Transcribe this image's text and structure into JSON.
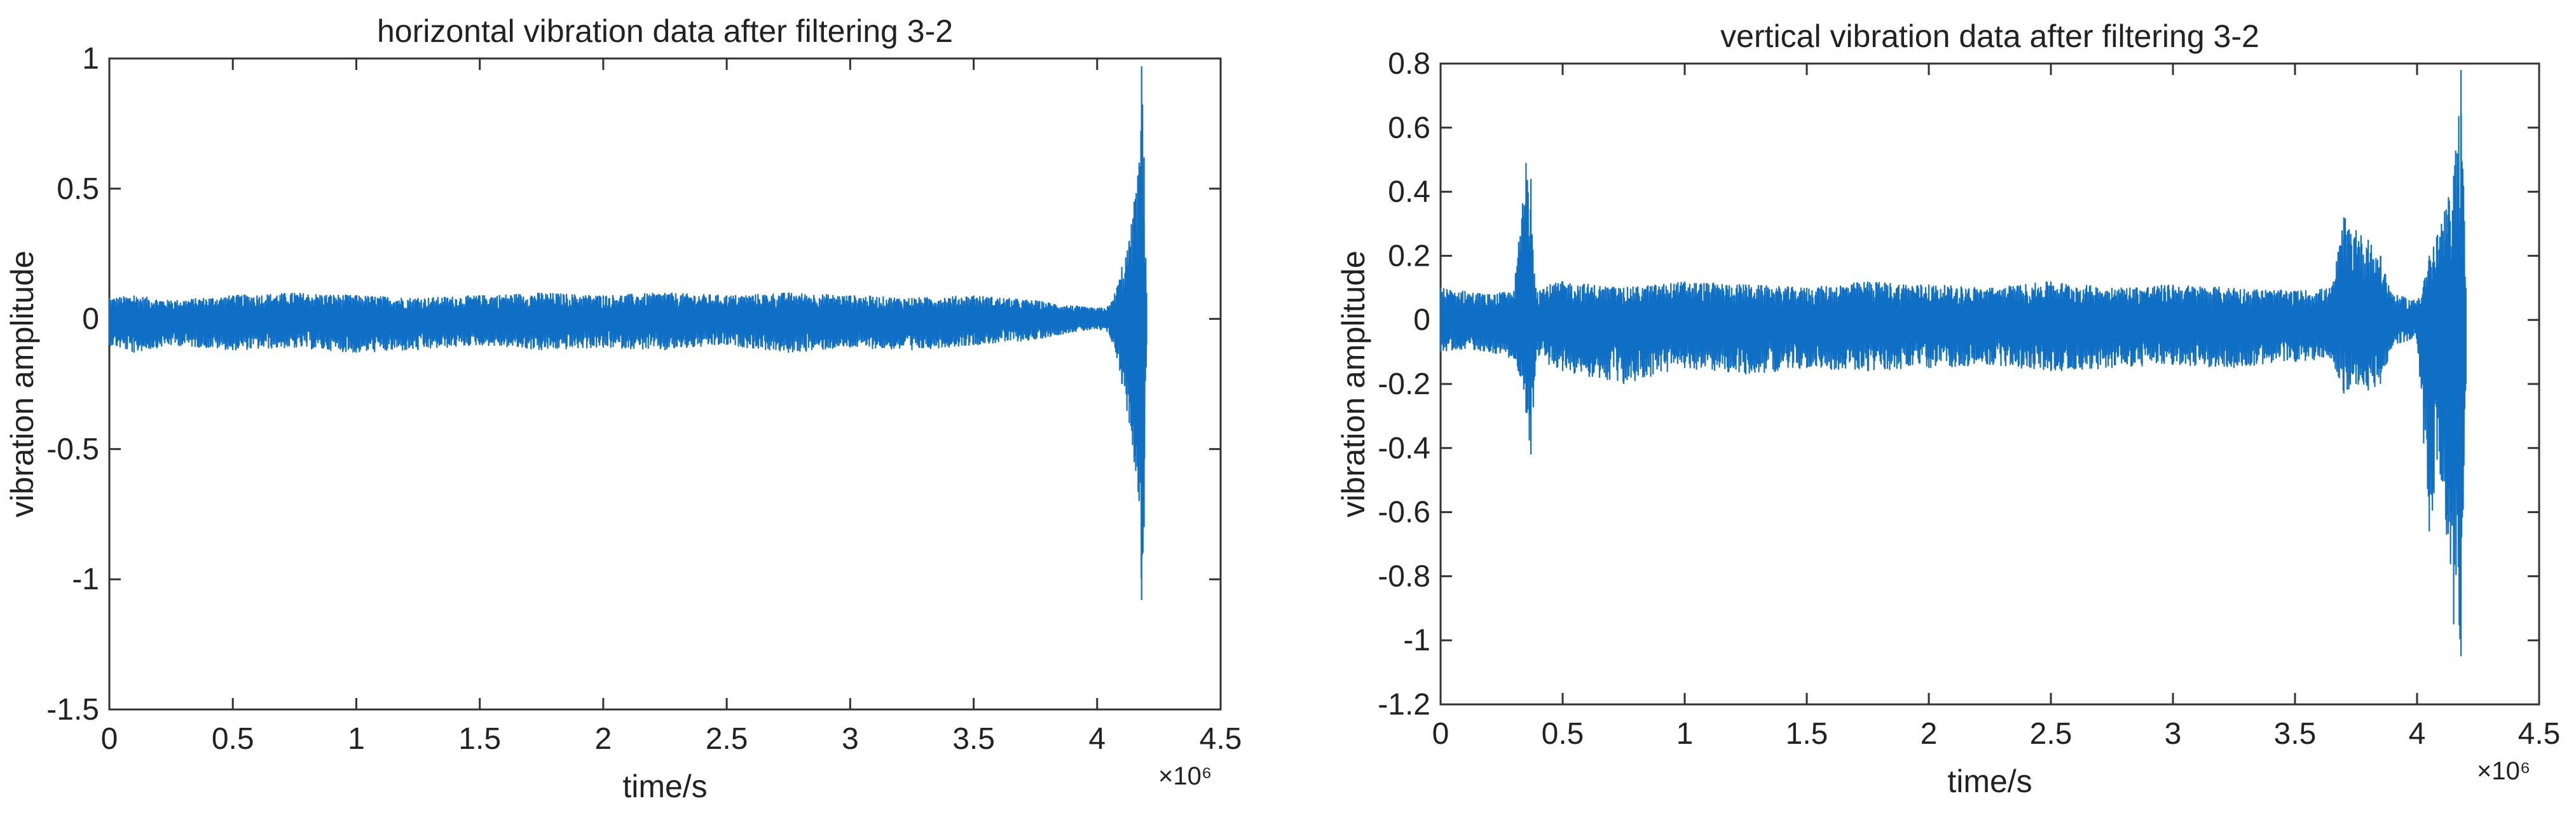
{
  "chart_data": [
    {
      "type": "line",
      "title": "horizontal vibration data after filtering 3-2",
      "xlabel": "time/s",
      "ylabel": "vibration amplitude",
      "x_multiplier_label": "×10⁶",
      "xlim": [
        0,
        4.5
      ],
      "ylim": [
        -1.5,
        1
      ],
      "xticks": [
        0,
        0.5,
        1,
        1.5,
        2,
        2.5,
        3,
        3.5,
        4,
        4.5
      ],
      "xtick_labels": [
        "0",
        "0.5",
        "1",
        "1.5",
        "2",
        "2.5",
        "3",
        "3.5",
        "4",
        "4.5"
      ],
      "yticks": [
        1,
        0.5,
        0,
        -0.5,
        -1,
        -1.5
      ],
      "ytick_labels": [
        "1",
        "0.5",
        "0",
        "-0.5",
        "-1",
        "-1.5"
      ],
      "grid": false,
      "line_color": "#0f6fc4",
      "series": [
        {
          "x": [
            0,
            0.1,
            0.25,
            0.5,
            0.75,
            1,
            1.25,
            1.5,
            1.75,
            2,
            2.25,
            2.5,
            2.75,
            3,
            3.25,
            3.5,
            3.75,
            3.9,
            4.0,
            4.05,
            4.08,
            4.1,
            4.13,
            4.15,
            4.17,
            4.18,
            4.19,
            4.2
          ],
          "upper": [
            0.08,
            0.09,
            0.07,
            0.09,
            0.1,
            0.09,
            0.08,
            0.09,
            0.1,
            0.09,
            0.1,
            0.09,
            0.1,
            0.09,
            0.08,
            0.09,
            0.07,
            0.05,
            0.04,
            0.05,
            0.12,
            0.2,
            0.3,
            0.45,
            0.6,
            0.97,
            0.62,
            0.1
          ],
          "lower": [
            -0.1,
            -0.13,
            -0.1,
            -0.12,
            -0.11,
            -0.13,
            -0.12,
            -0.1,
            -0.12,
            -0.11,
            -0.12,
            -0.1,
            -0.13,
            -0.11,
            -0.12,
            -0.1,
            -0.08,
            -0.05,
            -0.04,
            -0.06,
            -0.15,
            -0.25,
            -0.4,
            -0.55,
            -0.7,
            -1.08,
            -0.8,
            -0.1
          ]
        }
      ]
    },
    {
      "type": "line",
      "title": "vertical vibration data after filtering 3-2",
      "xlabel": "time/s",
      "ylabel": "vibration amplitude",
      "x_multiplier_label": "×10⁶",
      "xlim": [
        0,
        4.5
      ],
      "ylim": [
        -1.2,
        0.8
      ],
      "xticks": [
        0,
        0.5,
        1,
        1.5,
        2,
        2.5,
        3,
        3.5,
        4,
        4.5
      ],
      "xtick_labels": [
        "0",
        "0.5",
        "1",
        "1.5",
        "2",
        "2.5",
        "3",
        "3.5",
        "4",
        "4.5"
      ],
      "yticks": [
        0.8,
        0.6,
        0.4,
        0.2,
        0,
        -0.2,
        -0.4,
        -0.6,
        -0.8,
        -1,
        -1.2
      ],
      "ytick_labels": [
        "0.8",
        "0.6",
        "0.4",
        "0.2",
        "0",
        "-0.2",
        "-0.4",
        "-0.6",
        "-0.8",
        "-1",
        "-1.2"
      ],
      "grid": false,
      "line_color": "#0f6fc4",
      "series": [
        {
          "x": [
            0,
            0.1,
            0.2,
            0.3,
            0.35,
            0.37,
            0.39,
            0.5,
            0.75,
            1,
            1.25,
            1.5,
            1.75,
            2,
            2.25,
            2.5,
            2.75,
            3,
            3.25,
            3.5,
            3.65,
            3.7,
            3.75,
            3.8,
            3.85,
            3.9,
            4.0,
            4.05,
            4.1,
            4.15,
            4.18,
            4.2
          ],
          "upper": [
            0.1,
            0.09,
            0.08,
            0.09,
            0.49,
            0.44,
            0.1,
            0.12,
            0.1,
            0.12,
            0.11,
            0.1,
            0.12,
            0.11,
            0.1,
            0.12,
            0.1,
            0.11,
            0.1,
            0.09,
            0.1,
            0.32,
            0.28,
            0.25,
            0.2,
            0.08,
            0.06,
            0.2,
            0.3,
            0.45,
            0.78,
            0.1
          ],
          "lower": [
            -0.1,
            -0.09,
            -0.1,
            -0.12,
            -0.29,
            -0.42,
            -0.12,
            -0.16,
            -0.2,
            -0.15,
            -0.17,
            -0.15,
            -0.16,
            -0.15,
            -0.14,
            -0.16,
            -0.15,
            -0.14,
            -0.15,
            -0.13,
            -0.12,
            -0.23,
            -0.2,
            -0.22,
            -0.2,
            -0.08,
            -0.06,
            -0.66,
            -0.5,
            -0.95,
            -1.05,
            -0.2
          ]
        }
      ]
    }
  ]
}
